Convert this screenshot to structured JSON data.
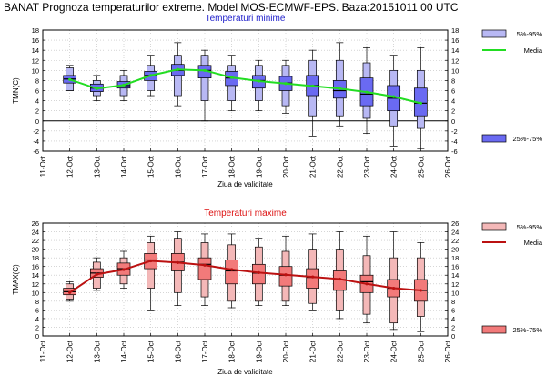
{
  "page": {
    "title": "BANAT  Prognoza temperaturilor extreme.  Model MOS-ECMWF-EPS. Baza:20151011 00 UTC"
  },
  "chart_data": [
    {
      "type": "box",
      "title": "Temperaturi minime",
      "title_color": "#2222cc",
      "ylabel": "TMN(C)",
      "xlabel": "Ziua de validitate",
      "x_ticks": [
        "11-Oct",
        "12-Oct",
        "13-Oct",
        "14-Oct",
        "15-Oct",
        "16-Oct",
        "17-Oct",
        "18-Oct",
        "19-Oct",
        "20-Oct",
        "21-Oct",
        "22-Oct",
        "23-Oct",
        "24-Oct",
        "25-Oct",
        "26-Oct"
      ],
      "ylim": [
        -6,
        18
      ],
      "y_step": 2,
      "grid": true,
      "zero_line": true,
      "box_color": "#6a6af2",
      "whisker_color": "#b8b8f4",
      "mean_color": "#22dd22",
      "legend": {
        "whisker_label": "5%-95%",
        "mean_label": "Media",
        "box_label": "25%-75%",
        "placement": "right"
      },
      "boxes": [
        {
          "x": "12-Oct",
          "p5": 6,
          "q1": 7.5,
          "med": 8.3,
          "q3": 9,
          "p95": 10.5,
          "min": 6,
          "max": 11
        },
        {
          "x": "13-Oct",
          "p5": 5,
          "q1": 5.8,
          "med": 6.5,
          "q3": 7.3,
          "p95": 8,
          "min": 4,
          "max": 9
        },
        {
          "x": "14-Oct",
          "p5": 5,
          "q1": 6.5,
          "med": 7,
          "q3": 7.8,
          "p95": 9,
          "min": 4,
          "max": 10
        },
        {
          "x": "15-Oct",
          "p5": 6,
          "q1": 8,
          "med": 9,
          "q3": 9.8,
          "p95": 11,
          "min": 5,
          "max": 13
        },
        {
          "x": "16-Oct",
          "p5": 5,
          "q1": 9,
          "med": 10,
          "q3": 11.2,
          "p95": 13,
          "min": 3,
          "max": 15.5
        },
        {
          "x": "17-Oct",
          "p5": 4,
          "q1": 8.5,
          "med": 10,
          "q3": 11,
          "p95": 13,
          "min": 0,
          "max": 14
        },
        {
          "x": "18-Oct",
          "p5": 4,
          "q1": 7,
          "med": 8.5,
          "q3": 9.8,
          "p95": 11,
          "min": 2,
          "max": 13
        },
        {
          "x": "19-Oct",
          "p5": 4,
          "q1": 6.5,
          "med": 8,
          "q3": 9,
          "p95": 11,
          "min": 2,
          "max": 12
        },
        {
          "x": "20-Oct",
          "p5": 3,
          "q1": 6,
          "med": 7.5,
          "q3": 8.8,
          "p95": 11,
          "min": 1.5,
          "max": 12
        },
        {
          "x": "21-Oct",
          "p5": 1,
          "q1": 5,
          "med": 7,
          "q3": 9,
          "p95": 12,
          "min": -3,
          "max": 14
        },
        {
          "x": "22-Oct",
          "p5": 1,
          "q1": 4.5,
          "med": 6,
          "q3": 8,
          "p95": 12,
          "min": -1,
          "max": 15.5
        },
        {
          "x": "23-Oct",
          "p5": 0.5,
          "q1": 3,
          "med": 5.3,
          "q3": 8.5,
          "p95": 11.5,
          "min": -2.5,
          "max": 14.5
        },
        {
          "x": "24-Oct",
          "p5": -1,
          "q1": 2,
          "med": 4.5,
          "q3": 7,
          "p95": 10,
          "min": -5,
          "max": 13
        },
        {
          "x": "25-Oct",
          "p5": -1.5,
          "q1": 1,
          "med": 3.5,
          "q3": 6.5,
          "p95": 10,
          "min": -5.5,
          "max": 14.5
        }
      ],
      "mean": [
        8.2,
        6.4,
        7.1,
        9,
        10.2,
        10,
        8.6,
        7.9,
        7.4,
        6.9,
        6.4,
        5.7,
        4.8,
        3.5
      ]
    },
    {
      "type": "box",
      "title": "Temperaturi maxime",
      "title_color": "#dd1111",
      "ylabel": "TMAX(C)",
      "xlabel": "Ziua de validitate",
      "x_ticks": [
        "11-Oct",
        "12-Oct",
        "13-Oct",
        "14-Oct",
        "15-Oct",
        "16-Oct",
        "17-Oct",
        "18-Oct",
        "19-Oct",
        "20-Oct",
        "21-Oct",
        "22-Oct",
        "23-Oct",
        "24-Oct",
        "25-Oct",
        "26-Oct"
      ],
      "ylim": [
        0,
        26
      ],
      "y_step": 2,
      "grid": true,
      "zero_line": false,
      "box_color": "#f27a7a",
      "whisker_color": "#f4b8b8",
      "mean_color": "#bb1111",
      "legend": {
        "whisker_label": "5%-95%",
        "mean_label": "Media",
        "box_label": "25%-75%",
        "placement": "right"
      },
      "boxes": [
        {
          "x": "12-Oct",
          "p5": 8.5,
          "q1": 9.5,
          "med": 10.2,
          "q3": 11,
          "p95": 12,
          "min": 8,
          "max": 12.5
        },
        {
          "x": "13-Oct",
          "p5": 11,
          "q1": 13.5,
          "med": 14.5,
          "q3": 15.5,
          "p95": 17,
          "min": 10.5,
          "max": 18
        },
        {
          "x": "14-Oct",
          "p5": 12,
          "q1": 14,
          "med": 15.5,
          "q3": 16.8,
          "p95": 18,
          "min": 11,
          "max": 19.5
        },
        {
          "x": "15-Oct",
          "p5": 11,
          "q1": 15.5,
          "med": 17.5,
          "q3": 19,
          "p95": 21.5,
          "min": 6,
          "max": 23
        },
        {
          "x": "16-Oct",
          "p5": 10,
          "q1": 15,
          "med": 17,
          "q3": 19,
          "p95": 22.5,
          "min": 7,
          "max": 24
        },
        {
          "x": "17-Oct",
          "p5": 9,
          "q1": 13,
          "med": 16.5,
          "q3": 18,
          "p95": 21.5,
          "min": 7,
          "max": 23.5
        },
        {
          "x": "18-Oct",
          "p5": 8,
          "q1": 12,
          "med": 15,
          "q3": 17.5,
          "p95": 21,
          "min": 6.5,
          "max": 23.5
        },
        {
          "x": "19-Oct",
          "p5": 8,
          "q1": 12,
          "med": 14.5,
          "q3": 16.5,
          "p95": 20.5,
          "min": 7,
          "max": 22.5
        },
        {
          "x": "20-Oct",
          "p5": 8,
          "q1": 11.5,
          "med": 14,
          "q3": 16,
          "p95": 19.5,
          "min": 7,
          "max": 23
        },
        {
          "x": "21-Oct",
          "p5": 7.5,
          "q1": 11,
          "med": 13.5,
          "q3": 15.5,
          "p95": 20,
          "min": 6,
          "max": 23.5
        },
        {
          "x": "22-Oct",
          "p5": 6,
          "q1": 10.5,
          "med": 13,
          "q3": 15,
          "p95": 20,
          "min": 4,
          "max": 24
        },
        {
          "x": "23-Oct",
          "p5": 5,
          "q1": 10,
          "med": 12.5,
          "q3": 14,
          "p95": 18.5,
          "min": 3,
          "max": 23
        },
        {
          "x": "24-Oct",
          "p5": 3,
          "q1": 9,
          "med": 11,
          "q3": 13,
          "p95": 18,
          "min": 1.5,
          "max": 24
        },
        {
          "x": "25-Oct",
          "p5": 4.5,
          "q1": 8,
          "med": 10.5,
          "q3": 13,
          "p95": 18,
          "min": 1,
          "max": 21.5
        }
      ],
      "mean": [
        10,
        14.2,
        15.3,
        17.3,
        16.9,
        16.3,
        15.3,
        14.6,
        14.1,
        13.6,
        13.1,
        12,
        11,
        10.5
      ]
    }
  ]
}
